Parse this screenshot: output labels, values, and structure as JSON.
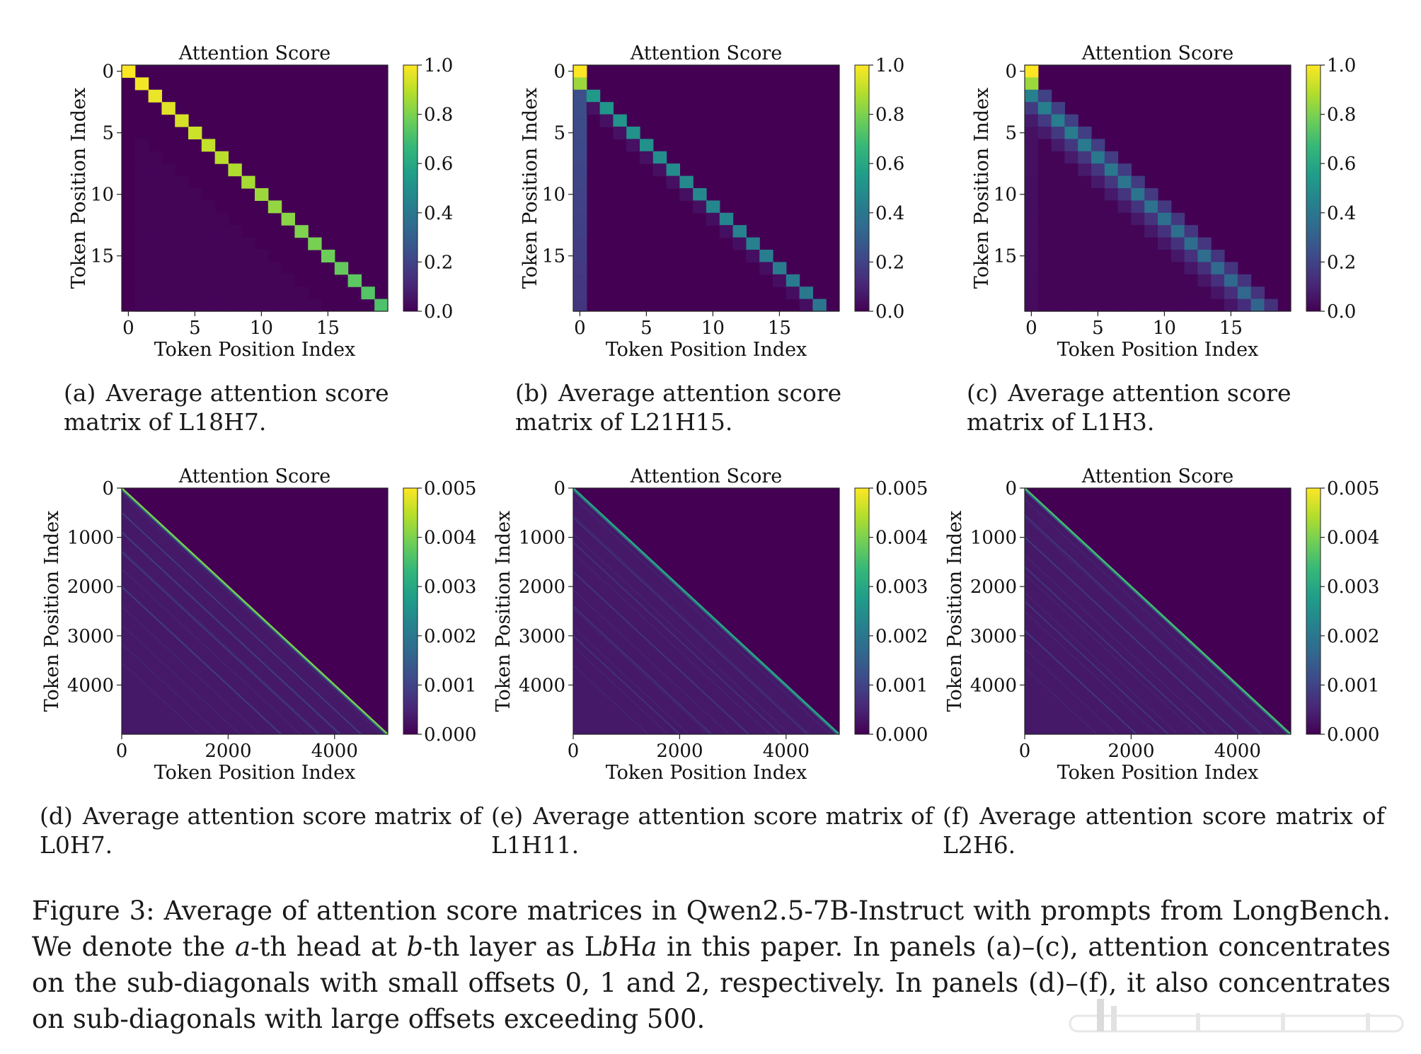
{
  "colors": {
    "viridis": [
      "#440154",
      "#482878",
      "#3e4a89",
      "#31688e",
      "#26828e",
      "#1f9e89",
      "#35b779",
      "#6ece58",
      "#b5de2b",
      "#fde725"
    ]
  },
  "panels": [
    {
      "id": "a",
      "chart_data": {
        "type": "heatmap",
        "title": "Attention Score",
        "xlabel": "Token Position Index",
        "ylabel": "Token Position Index",
        "n": 20,
        "xlim": [
          0,
          19
        ],
        "ylim": [
          0,
          19
        ],
        "xticks": [
          "0",
          "5",
          "10",
          "15"
        ],
        "yticks": [
          "0",
          "5",
          "10",
          "15"
        ],
        "colorbar": {
          "min": 0.0,
          "max": 1.0,
          "ticks": [
            "1.0",
            "0.8",
            "0.6",
            "0.4",
            "0.2",
            "0.0"
          ]
        },
        "pattern": {
          "diagonal_offsets": [
            {
              "offset": 0,
              "value": 1.0
            }
          ],
          "first_col": 0.0
        }
      },
      "caption": {
        "label": "(a)",
        "text": "Average attention score matrix of L18H7."
      }
    },
    {
      "id": "b",
      "chart_data": {
        "type": "heatmap",
        "title": "Attention Score",
        "xlabel": "Token Position Index",
        "ylabel": "Token Position Index",
        "n": 20,
        "xlim": [
          0,
          19
        ],
        "ylim": [
          0,
          19
        ],
        "xticks": [
          "0",
          "5",
          "10",
          "15"
        ],
        "yticks": [
          "0",
          "5",
          "10",
          "15"
        ],
        "colorbar": {
          "min": 0.0,
          "max": 1.0,
          "ticks": [
            "1.0",
            "0.8",
            "0.6",
            "0.4",
            "0.2",
            "0.0"
          ]
        },
        "pattern": {
          "diagonal_offsets": [
            {
              "offset": 1,
              "value": 0.55
            },
            {
              "offset": 2,
              "value": 0.05
            }
          ],
          "first_col": 0.25,
          "top_left": 1.0
        }
      },
      "caption": {
        "label": "(b)",
        "text": "Average attention score matrix of L21H15."
      }
    },
    {
      "id": "c",
      "chart_data": {
        "type": "heatmap",
        "title": "Attention Score",
        "xlabel": "Token Position Index",
        "ylabel": "Token Position Index",
        "n": 20,
        "xlim": [
          0,
          19
        ],
        "ylim": [
          0,
          19
        ],
        "xticks": [
          "0",
          "5",
          "10",
          "15"
        ],
        "yticks": [
          "0",
          "5",
          "10",
          "15"
        ],
        "colorbar": {
          "min": 0.0,
          "max": 1.0,
          "ticks": [
            "1.0",
            "0.8",
            "0.6",
            "0.4",
            "0.2",
            "0.0"
          ]
        },
        "pattern": {
          "diagonal_offsets": [
            {
              "offset": 1,
              "value": 0.2
            },
            {
              "offset": 2,
              "value": 0.45
            },
            {
              "offset": 3,
              "value": 0.18
            },
            {
              "offset": 4,
              "value": 0.08
            }
          ],
          "first_col": 0.05,
          "top_left": 1.0
        }
      },
      "caption": {
        "label": "(c)",
        "text": "Average attention score matrix of L1H3."
      }
    },
    {
      "id": "d",
      "chart_data": {
        "type": "heatmap",
        "title": "Attention Score",
        "xlabel": "Token Position Index",
        "ylabel": "Token Position Index",
        "n": 5000,
        "xlim": [
          0,
          5000
        ],
        "ylim": [
          0,
          5000
        ],
        "xticks": [
          "0",
          "2000",
          "4000"
        ],
        "yticks": [
          "0",
          "1000",
          "2000",
          "3000",
          "4000"
        ],
        "colorbar": {
          "min": 0.0,
          "max": 0.005,
          "ticks": [
            "0.005",
            "0.004",
            "0.003",
            "0.002",
            "0.001",
            "0.000"
          ]
        },
        "pattern": {
          "main_diagonal": 0.004,
          "sub_diagonal_offsets": [
            500,
            900,
            1300,
            2000
          ],
          "sub_value": 0.0012
        }
      },
      "caption": {
        "label": "(d)",
        "text": "Average attention score matrix of L0H7."
      }
    },
    {
      "id": "e",
      "chart_data": {
        "type": "heatmap",
        "title": "Attention Score",
        "xlabel": "Token Position Index",
        "ylabel": "Token Position Index",
        "n": 5000,
        "xlim": [
          0,
          5000
        ],
        "ylim": [
          0,
          5000
        ],
        "xticks": [
          "0",
          "2000",
          "4000"
        ],
        "yticks": [
          "0",
          "1000",
          "2000",
          "3000",
          "4000"
        ],
        "colorbar": {
          "min": 0.0,
          "max": 0.005,
          "ticks": [
            "0.005",
            "0.004",
            "0.003",
            "0.002",
            "0.001",
            "0.000"
          ]
        },
        "pattern": {
          "main_diagonal": 0.003,
          "sub_diagonal_offsets": [
            600,
            1100,
            1700,
            2400,
            3000
          ],
          "sub_value": 0.001
        }
      },
      "caption": {
        "label": "(e)",
        "text": "Average attention score matrix of L1H11."
      }
    },
    {
      "id": "f",
      "chart_data": {
        "type": "heatmap",
        "title": "Attention Score",
        "xlabel": "Token Position Index",
        "ylabel": "Token Position Index",
        "n": 5000,
        "xlim": [
          0,
          5000
        ],
        "ylim": [
          0,
          5000
        ],
        "xticks": [
          "0",
          "2000",
          "4000"
        ],
        "yticks": [
          "0",
          "1000",
          "2000",
          "3000",
          "4000"
        ],
        "colorbar": {
          "min": 0.0,
          "max": 0.005,
          "ticks": [
            "0.005",
            "0.004",
            "0.003",
            "0.002",
            "0.001",
            "0.000"
          ]
        },
        "pattern": {
          "main_diagonal": 0.0035,
          "sub_diagonal_offsets": [
            550,
            1000,
            1600,
            2300,
            2900
          ],
          "sub_value": 0.0011
        }
      },
      "caption": {
        "label": "(f)",
        "text": "Average attention score matrix of L2H6."
      }
    }
  ],
  "figure_caption": {
    "label": "Figure 3:",
    "part1": "Average of attention score matrices in Qwen2.5-7B-Instruct with prompts from LongBench. We denote the ",
    "a": "a",
    "part2": "-th head at ",
    "b": "b",
    "part3": "-th layer as L",
    "b2": "b",
    "part4": "H",
    "a2": "a",
    "part5": " in this paper. In panels (a)–(c), attention concentrates on the sub-diagonals with small offsets 0, 1 and 2, respectively. In panels (d)–(f), it also concentrates on sub-diagonals with large offsets exceeding 500."
  }
}
